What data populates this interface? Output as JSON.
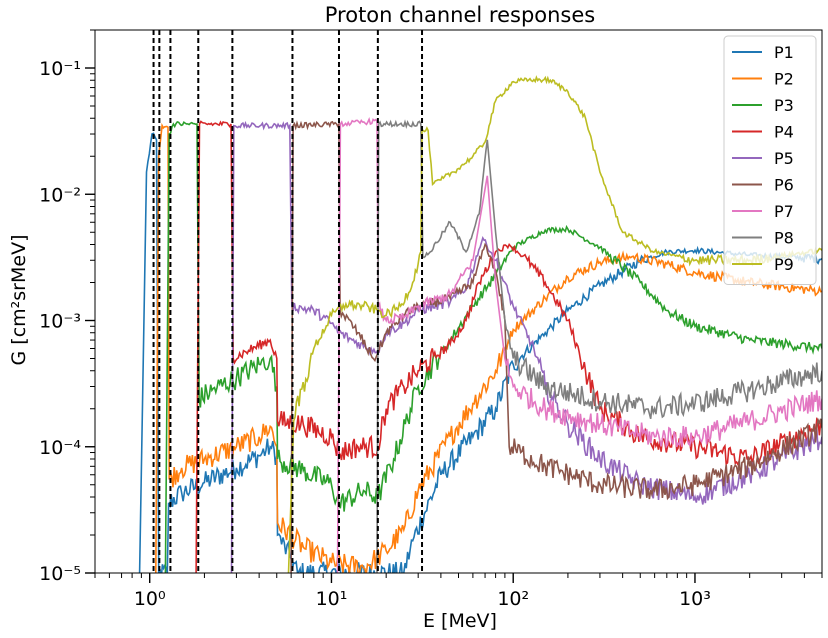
{
  "chart_data": {
    "type": "line",
    "title": "Proton channel responses",
    "xlabel": "E [MeV]",
    "ylabel": "G [cm²srMeV]",
    "xscale": "log",
    "yscale": "log",
    "xlim": [
      0.5,
      5000
    ],
    "ylim": [
      1e-05,
      0.2
    ],
    "x_tick_labels": [
      "10⁰",
      "10¹",
      "10²",
      "10³"
    ],
    "y_tick_labels": [
      "10⁻⁵",
      "10⁻⁴",
      "10⁻³",
      "10⁻²",
      "10⁻¹"
    ],
    "legend_position": "top-right",
    "grid": false,
    "vlines": {
      "style": "dashed",
      "color": "#000000",
      "x": [
        1.05,
        1.13,
        1.3,
        1.85,
        2.85,
        6.1,
        11.0,
        18.0,
        31.5
      ]
    },
    "series": [
      {
        "name": "P1",
        "color": "#1f77b4",
        "points": [
          [
            0.88,
            1e-05
          ],
          [
            0.96,
            0.015
          ],
          [
            1.03,
            0.03
          ],
          [
            1.09,
            0.027
          ],
          [
            1.12,
            1e-05
          ],
          [
            1.25,
            1e-05
          ],
          [
            1.27,
            3.6e-05
          ],
          [
            1.5,
            4.3e-05
          ],
          [
            2.0,
            5.2e-05
          ],
          [
            3.0,
            6.8e-05
          ],
          [
            4.0,
            8.5e-05
          ],
          [
            4.6,
            0.0001
          ],
          [
            5.0,
            8.5e-05
          ],
          [
            5.05,
            2e-05
          ],
          [
            6.0,
            1.3e-05
          ],
          [
            6.5,
            1e-05
          ],
          [
            25,
            1e-05
          ],
          [
            28,
            1.8e-05
          ],
          [
            40,
            6e-05
          ],
          [
            60,
            0.00012
          ],
          [
            80,
            0.0002
          ],
          [
            100,
            0.00045
          ],
          [
            150,
            0.0008
          ],
          [
            200,
            0.0012
          ],
          [
            300,
            0.0019
          ],
          [
            500,
            0.003
          ],
          [
            700,
            0.0035
          ],
          [
            1000,
            0.0036
          ],
          [
            2000,
            0.0033
          ],
          [
            5000,
            0.0031
          ]
        ]
      },
      {
        "name": "P2",
        "color": "#ff7f0e",
        "points": [
          [
            1.08,
            1e-05
          ],
          [
            1.12,
            0.02
          ],
          [
            1.17,
            0.035
          ],
          [
            1.26,
            0.034
          ],
          [
            1.28,
            5.5e-05
          ],
          [
            1.5,
            6.8e-05
          ],
          [
            2.0,
            8e-05
          ],
          [
            3.0,
            0.0001
          ],
          [
            4.0,
            0.00012
          ],
          [
            4.6,
            0.000145
          ],
          [
            5.0,
            0.0001
          ],
          [
            5.05,
            2.5e-05
          ],
          [
            7.0,
            1.6e-05
          ],
          [
            10,
            1.2e-05
          ],
          [
            15,
            1.1e-05
          ],
          [
            20,
            1.5e-05
          ],
          [
            25,
            2.2e-05
          ],
          [
            30,
            4.5e-05
          ],
          [
            45,
            0.00012
          ],
          [
            60,
            0.00022
          ],
          [
            80,
            0.0004
          ],
          [
            100,
            0.00085
          ],
          [
            150,
            0.0015
          ],
          [
            200,
            0.0022
          ],
          [
            300,
            0.0029
          ],
          [
            450,
            0.0032
          ],
          [
            700,
            0.0028
          ],
          [
            1000,
            0.0024
          ],
          [
            2000,
            0.002
          ],
          [
            5000,
            0.0017
          ]
        ]
      },
      {
        "name": "P3",
        "color": "#2ca02c",
        "points": [
          [
            1.22,
            1e-05
          ],
          [
            1.28,
            0.03
          ],
          [
            1.35,
            0.036
          ],
          [
            1.82,
            0.036
          ],
          [
            1.87,
            0.00024
          ],
          [
            2.2,
            0.00028
          ],
          [
            3.0,
            0.00035
          ],
          [
            4.0,
            0.00045
          ],
          [
            4.6,
            0.0005
          ],
          [
            5.0,
            0.0003
          ],
          [
            5.05,
            8e-05
          ],
          [
            7.0,
            6.5e-05
          ],
          [
            10,
            5e-05
          ],
          [
            11,
            3.5e-05
          ],
          [
            15,
            4.5e-05
          ],
          [
            18,
            4e-05
          ],
          [
            22,
            8e-05
          ],
          [
            30,
            0.0003
          ],
          [
            45,
            0.0007
          ],
          [
            60,
            0.0013
          ],
          [
            80,
            0.0023
          ],
          [
            100,
            0.0038
          ],
          [
            150,
            0.0052
          ],
          [
            200,
            0.0053
          ],
          [
            300,
            0.0038
          ],
          [
            500,
            0.002
          ],
          [
            700,
            0.0012
          ],
          [
            1000,
            0.0009
          ],
          [
            2000,
            0.0007
          ],
          [
            5000,
            0.0006
          ]
        ]
      },
      {
        "name": "P4",
        "color": "#d62728",
        "points": [
          [
            1.8,
            1e-05
          ],
          [
            1.88,
            0.036
          ],
          [
            2.8,
            0.036
          ],
          [
            2.88,
            0.0005
          ],
          [
            3.5,
            0.00058
          ],
          [
            4.6,
            0.0007
          ],
          [
            5.0,
            0.0005
          ],
          [
            5.05,
            0.00016
          ],
          [
            7.0,
            0.00015
          ],
          [
            10,
            0.00012
          ],
          [
            11,
            9e-05
          ],
          [
            14,
            0.0001
          ],
          [
            18,
            0.0001
          ],
          [
            20,
            0.0002
          ],
          [
            25,
            0.0003
          ],
          [
            30,
            0.0004
          ],
          [
            45,
            0.00065
          ],
          [
            55,
            0.001
          ],
          [
            65,
            0.002
          ],
          [
            80,
            0.0035
          ],
          [
            95,
            0.004
          ],
          [
            120,
            0.003
          ],
          [
            150,
            0.002
          ],
          [
            200,
            0.001
          ],
          [
            250,
            0.0004
          ],
          [
            300,
            0.0002
          ],
          [
            500,
            0.00012
          ],
          [
            1000,
            0.0001
          ],
          [
            2000,
            8e-05
          ],
          [
            5000,
            0.00015
          ]
        ]
      },
      {
        "name": "P5",
        "color": "#9467bd",
        "points": [
          [
            2.82,
            1e-05
          ],
          [
            2.9,
            0.035
          ],
          [
            5.9,
            0.035
          ],
          [
            6.05,
            0.0013
          ],
          [
            8.0,
            0.0012
          ],
          [
            10,
            0.00095
          ],
          [
            11,
            0.0008
          ],
          [
            13,
            0.0007
          ],
          [
            16,
            0.0006
          ],
          [
            18,
            0.00058
          ],
          [
            20,
            0.0008
          ],
          [
            25,
            0.00095
          ],
          [
            30,
            0.0012
          ],
          [
            45,
            0.0014
          ],
          [
            55,
            0.0018
          ],
          [
            68,
            0.0045
          ],
          [
            80,
            0.003
          ],
          [
            100,
            0.0013
          ],
          [
            130,
            0.0006
          ],
          [
            150,
            0.0003
          ],
          [
            200,
            0.00015
          ],
          [
            300,
            8e-05
          ],
          [
            500,
            5e-05
          ],
          [
            1000,
            4e-05
          ],
          [
            2000,
            6e-05
          ],
          [
            5000,
            0.00012
          ]
        ]
      },
      {
        "name": "P6",
        "color": "#8c564b",
        "points": [
          [
            6.0,
            1e-05
          ],
          [
            6.15,
            0.035
          ],
          [
            11.0,
            0.036
          ],
          [
            11.15,
            0.0012
          ],
          [
            14,
            0.0008
          ],
          [
            17,
            0.0005
          ],
          [
            18,
            0.00055
          ],
          [
            20,
            0.0008
          ],
          [
            25,
            0.0011
          ],
          [
            30,
            0.0013
          ],
          [
            45,
            0.0015
          ],
          [
            60,
            0.002
          ],
          [
            70,
            0.004
          ],
          [
            80,
            0.0025
          ],
          [
            90,
            0.001
          ],
          [
            95,
            0.0001
          ],
          [
            110,
            9e-05
          ],
          [
            150,
            7e-05
          ],
          [
            300,
            5e-05
          ],
          [
            600,
            4.5e-05
          ],
          [
            1000,
            5e-05
          ],
          [
            2000,
            7e-05
          ],
          [
            5000,
            0.00014
          ]
        ]
      },
      {
        "name": "P7",
        "color": "#e377c2",
        "points": [
          [
            10.8,
            1e-05
          ],
          [
            11.2,
            0.036
          ],
          [
            17.8,
            0.038
          ],
          [
            18.1,
            0.0013
          ],
          [
            20,
            0.001
          ],
          [
            25,
            0.00105
          ],
          [
            30,
            0.0013
          ],
          [
            45,
            0.0016
          ],
          [
            60,
            0.003
          ],
          [
            72,
            0.014
          ],
          [
            80,
            0.002
          ],
          [
            90,
            0.0005
          ],
          [
            100,
            0.0003
          ],
          [
            150,
            0.0002
          ],
          [
            300,
            0.00015
          ],
          [
            600,
            0.00012
          ],
          [
            1000,
            0.00012
          ],
          [
            2000,
            0.00016
          ],
          [
            5000,
            0.00024
          ]
        ]
      },
      {
        "name": "P8",
        "color": "#7f7f7f",
        "points": [
          [
            17.8,
            1e-05
          ],
          [
            18.2,
            0.036
          ],
          [
            31.0,
            0.036
          ],
          [
            31.8,
            0.0032
          ],
          [
            35,
            0.0035
          ],
          [
            45,
            0.006
          ],
          [
            55,
            0.0035
          ],
          [
            65,
            0.007
          ],
          [
            72,
            0.027
          ],
          [
            80,
            0.005
          ],
          [
            90,
            0.001
          ],
          [
            100,
            0.0005
          ],
          [
            150,
            0.0003
          ],
          [
            300,
            0.00023
          ],
          [
            600,
            0.0002
          ],
          [
            1000,
            0.00022
          ],
          [
            2000,
            0.00028
          ],
          [
            5000,
            0.0004
          ]
        ]
      },
      {
        "name": "P9",
        "color": "#bcbd22",
        "points": [
          [
            5.8,
            1e-05
          ],
          [
            6.2,
            0.00016
          ],
          [
            8.0,
            0.0006
          ],
          [
            10,
            0.0011
          ],
          [
            12,
            0.00135
          ],
          [
            15,
            0.0013
          ],
          [
            18,
            0.0012
          ],
          [
            20,
            0.0011
          ],
          [
            24,
            0.0013
          ],
          [
            28,
            0.002
          ],
          [
            31,
            0.0035
          ],
          [
            31.5,
            0.032
          ],
          [
            34,
            0.032
          ],
          [
            36,
            0.012
          ],
          [
            40,
            0.013
          ],
          [
            50,
            0.016
          ],
          [
            60,
            0.02
          ],
          [
            70,
            0.026
          ],
          [
            80,
            0.055
          ],
          [
            100,
            0.078
          ],
          [
            130,
            0.081
          ],
          [
            160,
            0.08
          ],
          [
            200,
            0.065
          ],
          [
            250,
            0.04
          ],
          [
            300,
            0.015
          ],
          [
            400,
            0.005
          ],
          [
            600,
            0.0035
          ],
          [
            1000,
            0.003
          ],
          [
            2000,
            0.003
          ],
          [
            5000,
            0.0036
          ]
        ]
      }
    ]
  }
}
